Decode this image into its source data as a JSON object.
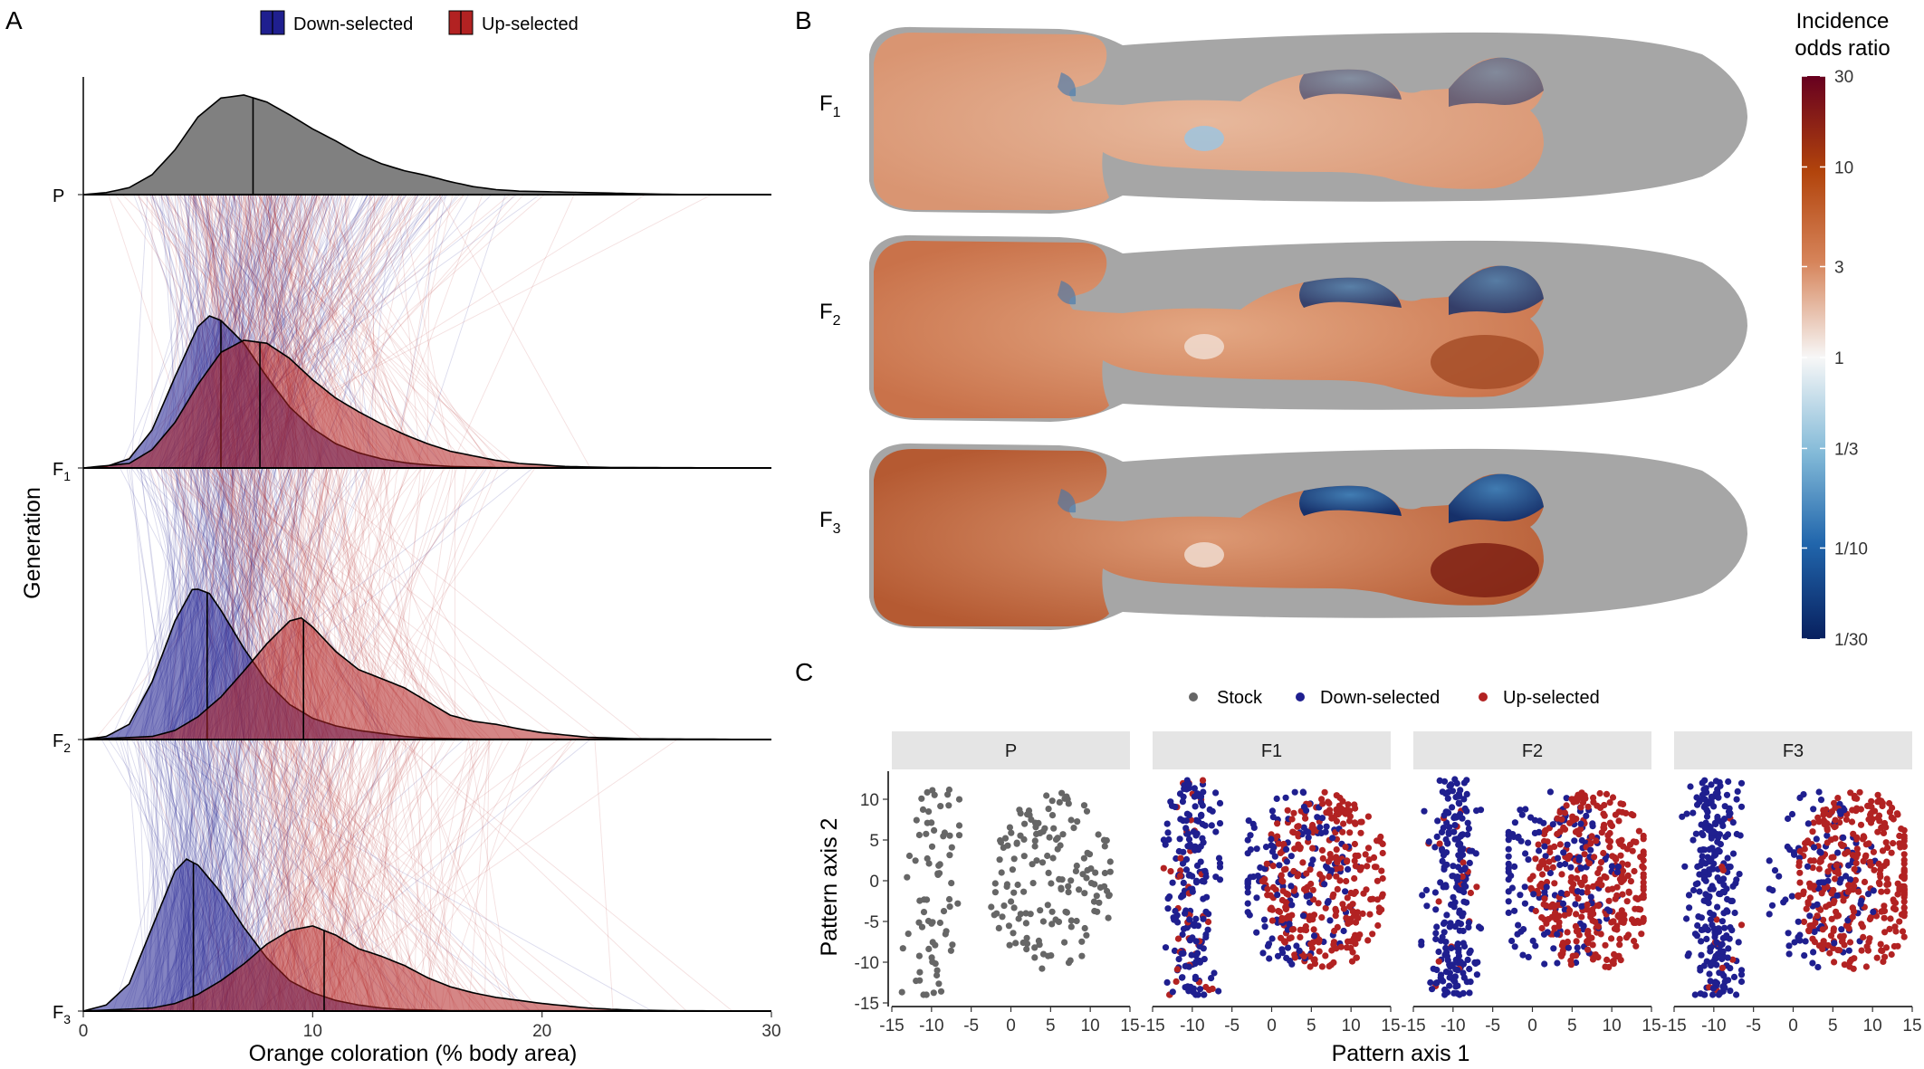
{
  "figure": {
    "panel_letters": [
      "A",
      "B",
      "C"
    ],
    "colors": {
      "down": "#1f1f8f",
      "up": "#b22222",
      "stock": "#666666",
      "parent_fill": "#808080",
      "silhouette": "#a6a6a6"
    }
  },
  "chart_data": [
    {
      "id": "A",
      "type": "area",
      "description_kind": "ridgeline density with individual lineage lines",
      "xlabel": "Orange coloration (% body area)",
      "ylabel": "Generation",
      "xlim": [
        0,
        30
      ],
      "x_ticks": [
        0,
        10,
        20,
        30
      ],
      "legend": {
        "placement": "top",
        "entries": [
          "Down-selected",
          "Up-selected"
        ]
      },
      "rows": [
        {
          "generation": "P",
          "label_main": "P",
          "label_sub": "",
          "series": [
            {
              "name": "",
              "group": "stock",
              "median": 7.4,
              "density": [
                [
                  0,
                  0
                ],
                [
                  1,
                  0.02
                ],
                [
                  2,
                  0.07
                ],
                [
                  3,
                  0.2
                ],
                [
                  4,
                  0.45
                ],
                [
                  5,
                  0.78
                ],
                [
                  6,
                  0.97
                ],
                [
                  7,
                  1.0
                ],
                [
                  8,
                  0.93
                ],
                [
                  9,
                  0.8
                ],
                [
                  10,
                  0.66
                ],
                [
                  11,
                  0.54
                ],
                [
                  12,
                  0.41
                ],
                [
                  13,
                  0.31
                ],
                [
                  14,
                  0.24
                ],
                [
                  15,
                  0.19
                ],
                [
                  16,
                  0.13
                ],
                [
                  17,
                  0.08
                ],
                [
                  18,
                  0.05
                ],
                [
                  19,
                  0.035
                ],
                [
                  20,
                  0.03
                ],
                [
                  21,
                  0.025
                ],
                [
                  22,
                  0.02
                ],
                [
                  23,
                  0.015
                ],
                [
                  24,
                  0.01
                ],
                [
                  25,
                  0.005
                ],
                [
                  26,
                  0.002
                ],
                [
                  30,
                  0
                ]
              ]
            }
          ]
        },
        {
          "generation": "F1",
          "label_main": "F",
          "label_sub": "1",
          "series": [
            {
              "name": "Down-selected",
              "group": "down",
              "median": 6.0,
              "density": [
                [
                  0,
                  0
                ],
                [
                  1,
                  0.01
                ],
                [
                  2,
                  0.06
                ],
                [
                  3,
                  0.25
                ],
                [
                  4,
                  0.6
                ],
                [
                  5,
                  0.93
                ],
                [
                  5.5,
                  1.0
                ],
                [
                  6,
                  0.97
                ],
                [
                  7,
                  0.82
                ],
                [
                  8,
                  0.6
                ],
                [
                  9,
                  0.4
                ],
                [
                  10,
                  0.26
                ],
                [
                  11,
                  0.16
                ],
                [
                  12,
                  0.1
                ],
                [
                  13,
                  0.06
                ],
                [
                  14,
                  0.035
                ],
                [
                  15,
                  0.02
                ],
                [
                  16,
                  0.01
                ],
                [
                  18,
                  0.003
                ],
                [
                  30,
                  0
                ]
              ]
            },
            {
              "name": "Up-selected",
              "group": "up",
              "median": 7.7,
              "density": [
                [
                  0,
                  0
                ],
                [
                  2,
                  0.03
                ],
                [
                  3,
                  0.12
                ],
                [
                  4,
                  0.3
                ],
                [
                  5,
                  0.55
                ],
                [
                  6,
                  0.76
                ],
                [
                  7,
                  0.84
                ],
                [
                  8,
                  0.82
                ],
                [
                  9,
                  0.72
                ],
                [
                  10,
                  0.58
                ],
                [
                  11,
                  0.46
                ],
                [
                  12,
                  0.37
                ],
                [
                  13,
                  0.29
                ],
                [
                  14,
                  0.22
                ],
                [
                  15,
                  0.16
                ],
                [
                  16,
                  0.11
                ],
                [
                  17,
                  0.08
                ],
                [
                  18,
                  0.05
                ],
                [
                  19,
                  0.03
                ],
                [
                  20,
                  0.02
                ],
                [
                  21,
                  0.01
                ],
                [
                  23,
                  0.003
                ],
                [
                  30,
                  0
                ]
              ]
            }
          ]
        },
        {
          "generation": "F2",
          "label_main": "F",
          "label_sub": "2",
          "series": [
            {
              "name": "Down-selected",
              "group": "down",
              "median": 5.4,
              "density": [
                [
                  0,
                  0
                ],
                [
                  1,
                  0.02
                ],
                [
                  2,
                  0.1
                ],
                [
                  3,
                  0.38
                ],
                [
                  4,
                  0.78
                ],
                [
                  4.8,
                  1.0
                ],
                [
                  5.5,
                  0.96
                ],
                [
                  6,
                  0.85
                ],
                [
                  7,
                  0.6
                ],
                [
                  8,
                  0.38
                ],
                [
                  9,
                  0.23
                ],
                [
                  10,
                  0.14
                ],
                [
                  11,
                  0.09
                ],
                [
                  12,
                  0.06
                ],
                [
                  13,
                  0.04
                ],
                [
                  14,
                  0.02
                ],
                [
                  15,
                  0.01
                ],
                [
                  17,
                  0.003
                ],
                [
                  30,
                  0
                ]
              ]
            },
            {
              "name": "Up-selected",
              "group": "up",
              "median": 9.6,
              "density": [
                [
                  0,
                  0
                ],
                [
                  3,
                  0.02
                ],
                [
                  4,
                  0.06
                ],
                [
                  5,
                  0.15
                ],
                [
                  6,
                  0.28
                ],
                [
                  7,
                  0.45
                ],
                [
                  8,
                  0.63
                ],
                [
                  9,
                  0.78
                ],
                [
                  9.5,
                  0.8
                ],
                [
                  10,
                  0.74
                ],
                [
                  11,
                  0.58
                ],
                [
                  12,
                  0.46
                ],
                [
                  13,
                  0.4
                ],
                [
                  14,
                  0.34
                ],
                [
                  15,
                  0.25
                ],
                [
                  16,
                  0.16
                ],
                [
                  17,
                  0.12
                ],
                [
                  18,
                  0.1
                ],
                [
                  19,
                  0.07
                ],
                [
                  20,
                  0.045
                ],
                [
                  21,
                  0.03
                ],
                [
                  22,
                  0.015
                ],
                [
                  24,
                  0.005
                ],
                [
                  30,
                  0
                ]
              ]
            }
          ]
        },
        {
          "generation": "F3",
          "label_main": "F",
          "label_sub": "3",
          "series": [
            {
              "name": "Down-selected",
              "group": "down",
              "median": 4.8,
              "density": [
                [
                  0,
                  0
                ],
                [
                  1,
                  0.04
                ],
                [
                  2,
                  0.18
                ],
                [
                  3,
                  0.55
                ],
                [
                  4,
                  0.92
                ],
                [
                  4.5,
                  1.0
                ],
                [
                  5,
                  0.96
                ],
                [
                  6,
                  0.78
                ],
                [
                  7,
                  0.55
                ],
                [
                  8,
                  0.35
                ],
                [
                  9,
                  0.2
                ],
                [
                  10,
                  0.12
                ],
                [
                  11,
                  0.07
                ],
                [
                  12,
                  0.04
                ],
                [
                  13,
                  0.02
                ],
                [
                  14,
                  0.01
                ],
                [
                  16,
                  0.003
                ],
                [
                  30,
                  0
                ]
              ]
            },
            {
              "name": "Up-selected",
              "group": "up",
              "median": 10.5,
              "density": [
                [
                  0,
                  0
                ],
                [
                  3,
                  0.02
                ],
                [
                  4,
                  0.05
                ],
                [
                  5,
                  0.11
                ],
                [
                  6,
                  0.2
                ],
                [
                  7,
                  0.31
                ],
                [
                  8,
                  0.44
                ],
                [
                  9,
                  0.53
                ],
                [
                  10,
                  0.56
                ],
                [
                  11,
                  0.5
                ],
                [
                  12,
                  0.41
                ],
                [
                  13,
                  0.36
                ],
                [
                  14,
                  0.3
                ],
                [
                  15,
                  0.22
                ],
                [
                  16,
                  0.16
                ],
                [
                  17,
                  0.12
                ],
                [
                  18,
                  0.09
                ],
                [
                  19,
                  0.07
                ],
                [
                  20,
                  0.05
                ],
                [
                  21,
                  0.035
                ],
                [
                  22,
                  0.02
                ],
                [
                  23,
                  0.012
                ],
                [
                  24,
                  0.006
                ],
                [
                  26,
                  0.002
                ],
                [
                  30,
                  0
                ]
              ]
            }
          ]
        }
      ]
    },
    {
      "id": "B",
      "type": "heatmap",
      "description_kind": "body-map heatmaps per generation",
      "rows": [
        {
          "label_main": "F",
          "label_sub": "1"
        },
        {
          "label_main": "F",
          "label_sub": "2"
        },
        {
          "label_main": "F",
          "label_sub": "3"
        }
      ],
      "colorbar": {
        "title_lines": [
          "Incidence",
          "odds ratio"
        ],
        "scale": "log",
        "range": [
          0.0333,
          30
        ],
        "ticks": [
          {
            "value": 30,
            "label": "30"
          },
          {
            "value": 10,
            "label": "10"
          },
          {
            "value": 3,
            "label": "3"
          },
          {
            "value": 1,
            "label": "1"
          },
          {
            "value": 0.3333,
            "label": "1/3"
          },
          {
            "value": 0.1,
            "label": "1/10"
          },
          {
            "value": 0.0333,
            "label": "1/30"
          }
        ]
      }
    },
    {
      "id": "C",
      "type": "scatter",
      "xlabel": "Pattern axis 1",
      "ylabel": "Pattern axis 2",
      "xlim": [
        -15,
        15
      ],
      "ylim": [
        -15,
        13
      ],
      "x_ticks": [
        -15,
        -10,
        -5,
        0,
        5,
        10,
        15
      ],
      "x_tick_labels": [
        "-15",
        "-10",
        "-5",
        "0",
        "5",
        "10",
        "15"
      ],
      "y_ticks": [
        -15,
        -10,
        -5,
        0,
        5,
        10
      ],
      "legend": {
        "placement": "top",
        "entries": [
          "Stock",
          "Down-selected",
          "Up-selected"
        ]
      },
      "facets": [
        {
          "label": "P",
          "groups": [
            {
              "name": "Stock",
              "n": 230
            }
          ]
        },
        {
          "label": "F1",
          "groups": [
            {
              "name": "Down-selected",
              "n": 330
            },
            {
              "name": "Up-selected",
              "n": 330
            }
          ]
        },
        {
          "label": "F2",
          "groups": [
            {
              "name": "Down-selected",
              "n": 360
            },
            {
              "name": "Up-selected",
              "n": 360
            }
          ]
        },
        {
          "label": "F3",
          "groups": [
            {
              "name": "Down-selected",
              "n": 360
            },
            {
              "name": "Up-selected",
              "n": 360
            }
          ]
        }
      ]
    }
  ]
}
